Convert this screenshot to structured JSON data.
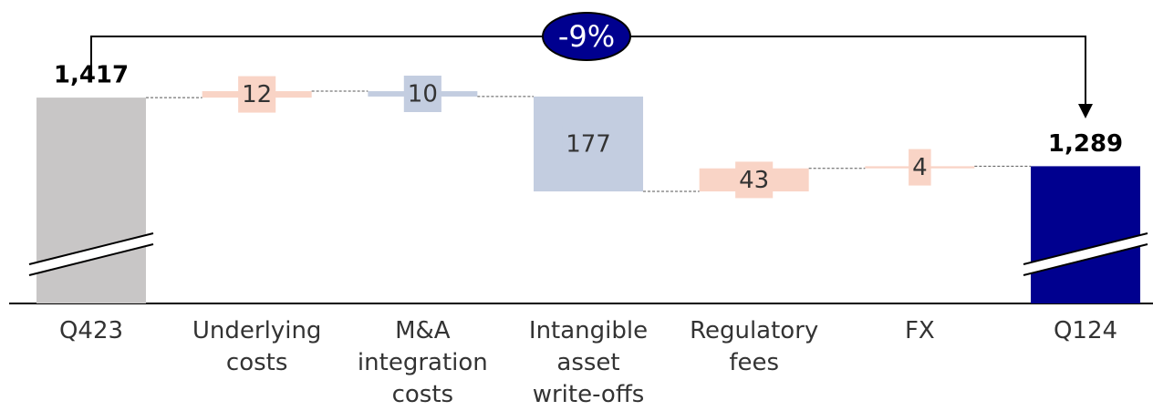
{
  "chart_data": {
    "type": "waterfall",
    "categories": [
      "Q423",
      "Underlying costs",
      "M&A integration costs",
      "Intangible asset write-offs",
      "Regulatory fees",
      "FX",
      "Q124"
    ],
    "measures": [
      "total",
      "increase",
      "decrease",
      "decrease",
      "increase",
      "increase",
      "total"
    ],
    "values": [
      1417,
      12,
      10,
      177,
      43,
      4,
      1289
    ],
    "value_labels": [
      "1,417",
      "12",
      "10",
      "177",
      "43",
      "4",
      "1,289"
    ],
    "colors": [
      "#c8c6c6",
      "#f9d4c6",
      "#c3cde0",
      "#c3cde0",
      "#f9d4c6",
      "#f9d4c6",
      "#00008f"
    ],
    "ylim": [
      1033,
      1450
    ],
    "axis_break": true,
    "annotation": "-9%"
  }
}
